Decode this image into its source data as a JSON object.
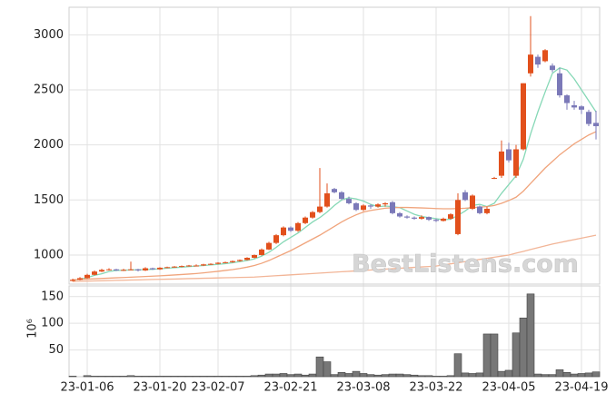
{
  "chart_data": [
    {
      "type": "candlestick",
      "watermark": "BestListens.com",
      "up_color": "#e2501c",
      "down_color": "#7b79b8",
      "ylim": [
        736,
        3250
      ],
      "yticks": [
        1000,
        1500,
        2000,
        2500,
        3000
      ],
      "grid": true,
      "open": [
        765,
        775,
        790,
        820,
        850,
        865,
        870,
        860,
        865,
        870,
        860,
        880,
        870,
        885,
        890,
        895,
        900,
        905,
        905,
        915,
        920,
        930,
        935,
        945,
        955,
        975,
        1000,
        1050,
        1110,
        1180,
        1250,
        1220,
        1290,
        1340,
        1390,
        1440,
        1600,
        1570,
        1510,
        1470,
        1410,
        1450,
        1440,
        1460,
        1480,
        1380,
        1350,
        1340,
        1330,
        1345,
        1320,
        1310,
        1330,
        1190,
        1570,
        1420,
        1440,
        1380,
        1700,
        1720,
        1960,
        1720,
        1960,
        2650,
        2800,
        2760,
        2720,
        2650,
        2450,
        2360,
        2350,
        2300,
        2200
      ],
      "high": [
        785,
        800,
        830,
        860,
        875,
        880,
        875,
        875,
        940,
        875,
        890,
        885,
        890,
        895,
        900,
        905,
        910,
        915,
        920,
        925,
        935,
        940,
        950,
        960,
        980,
        1005,
        1060,
        1120,
        1190,
        1260,
        1260,
        1300,
        1350,
        1400,
        1790,
        1650,
        1610,
        1580,
        1530,
        1480,
        1460,
        1460,
        1470,
        1480,
        1490,
        1390,
        1360,
        1350,
        1360,
        1350,
        1330,
        1340,
        1380,
        1560,
        1590,
        1550,
        1450,
        1440,
        1710,
        2040,
        2020,
        2000,
        2560,
        3170,
        2820,
        2870,
        2740,
        2700,
        2460,
        2400,
        2360,
        2320,
        2310
      ],
      "low": [
        760,
        770,
        785,
        815,
        845,
        860,
        855,
        855,
        860,
        850,
        855,
        865,
        865,
        880,
        885,
        890,
        895,
        900,
        900,
        910,
        915,
        925,
        930,
        940,
        950,
        970,
        995,
        1045,
        1100,
        1170,
        1210,
        1210,
        1280,
        1330,
        1380,
        1430,
        1560,
        1500,
        1460,
        1400,
        1400,
        1420,
        1430,
        1440,
        1370,
        1340,
        1330,
        1320,
        1320,
        1310,
        1300,
        1305,
        1320,
        1180,
        1490,
        1410,
        1370,
        1370,
        1690,
        1700,
        1840,
        1700,
        1950,
        2620,
        2700,
        2750,
        2660,
        2430,
        2320,
        2320,
        2280,
        2170,
        2050
      ],
      "close": [
        775,
        790,
        820,
        850,
        865,
        870,
        860,
        865,
        870,
        860,
        880,
        870,
        885,
        890,
        895,
        900,
        905,
        905,
        915,
        920,
        930,
        935,
        945,
        955,
        975,
        1000,
        1050,
        1110,
        1180,
        1250,
        1220,
        1290,
        1340,
        1390,
        1440,
        1560,
        1570,
        1510,
        1470,
        1410,
        1450,
        1440,
        1460,
        1470,
        1380,
        1350,
        1340,
        1330,
        1345,
        1320,
        1310,
        1330,
        1370,
        1500,
        1500,
        1540,
        1380,
        1420,
        1700,
        1940,
        1860,
        1960,
        2560,
        2820,
        2730,
        2860,
        2680,
        2450,
        2380,
        2340,
        2320,
        2190,
        2170
      ],
      "lines": [
        {
          "color": "#86d8b6",
          "values": [
            770,
            780,
            795,
            815,
            830,
            850,
            860,
            862,
            865,
            865,
            868,
            870,
            875,
            880,
            885,
            890,
            895,
            900,
            905,
            910,
            915,
            922,
            930,
            940,
            950,
            965,
            990,
            1025,
            1070,
            1120,
            1160,
            1200,
            1250,
            1300,
            1340,
            1390,
            1450,
            1500,
            1520,
            1510,
            1490,
            1460,
            1440,
            1445,
            1440,
            1430,
            1400,
            1370,
            1350,
            1340,
            1330,
            1320,
            1325,
            1360,
            1400,
            1450,
            1460,
            1440,
            1470,
            1560,
            1640,
            1720,
            1870,
            2100,
            2300,
            2480,
            2650,
            2700,
            2680,
            2600,
            2500,
            2400,
            2300
          ]
        },
        {
          "color": "#f0a47c",
          "values": [
            775,
            778,
            781,
            784,
            787,
            790,
            793,
            796,
            799,
            802,
            805,
            808,
            811,
            815,
            819,
            823,
            827,
            832,
            838,
            845,
            852,
            860,
            868,
            878,
            890,
            905,
            925,
            950,
            980,
            1010,
            1040,
            1075,
            1110,
            1145,
            1180,
            1220,
            1260,
            1300,
            1335,
            1365,
            1390,
            1405,
            1415,
            1425,
            1430,
            1432,
            1432,
            1430,
            1428,
            1425,
            1422,
            1420,
            1420,
            1422,
            1425,
            1430,
            1435,
            1440,
            1450,
            1470,
            1495,
            1525,
            1580,
            1650,
            1720,
            1790,
            1850,
            1910,
            1960,
            2010,
            2050,
            2090,
            2120
          ]
        },
        {
          "color": "#f2b597",
          "values": [
            760,
            762,
            763,
            765,
            766,
            768,
            770,
            771,
            773,
            774,
            776,
            778,
            779,
            781,
            782,
            784,
            786,
            787,
            789,
            790,
            792,
            794,
            795,
            797,
            798,
            800,
            804,
            808,
            812,
            816,
            820,
            824,
            828,
            832,
            836,
            840,
            844,
            848,
            852,
            856,
            860,
            864,
            868,
            872,
            876,
            880,
            884,
            888,
            892,
            896,
            900,
            910,
            920,
            930,
            940,
            950,
            960,
            970,
            980,
            990,
            1000,
            1017,
            1033,
            1050,
            1067,
            1083,
            1100,
            1113,
            1127,
            1140,
            1153,
            1167,
            1180
          ]
        }
      ]
    },
    {
      "type": "bar",
      "ylabel": "10⁶",
      "color": "#777777",
      "ylim": [
        0,
        170
      ],
      "yticks": [
        50,
        100,
        150
      ],
      "grid": true,
      "categories": [
        null,
        null,
        "23-01-06",
        null,
        null,
        null,
        null,
        null,
        null,
        null,
        null,
        null,
        "23-01-20",
        null,
        null,
        null,
        null,
        null,
        null,
        null,
        "23-02-07",
        null,
        null,
        null,
        null,
        null,
        null,
        null,
        null,
        null,
        "23-02-21",
        null,
        null,
        null,
        null,
        null,
        null,
        null,
        null,
        null,
        "23-03-08",
        null,
        null,
        null,
        null,
        null,
        null,
        null,
        null,
        null,
        "23-03-22",
        null,
        null,
        null,
        null,
        null,
        null,
        null,
        null,
        null,
        "23-04-05",
        null,
        null,
        null,
        null,
        null,
        null,
        null,
        null,
        null,
        "23-04-19",
        null,
        null
      ],
      "values": [
        1,
        0,
        2,
        1,
        1,
        1,
        1,
        1,
        2,
        1,
        1,
        1,
        1,
        1,
        1,
        1,
        1,
        1,
        1,
        1,
        1,
        1,
        1,
        1,
        1,
        2,
        3,
        5,
        5,
        6,
        4,
        5,
        3,
        5,
        37,
        28,
        4,
        8,
        6,
        10,
        6,
        4,
        3,
        4,
        5,
        5,
        4,
        3,
        2,
        2,
        1,
        1,
        2,
        43,
        7,
        6,
        7,
        80,
        80,
        10,
        12,
        82,
        110,
        155,
        5,
        4,
        4,
        13,
        8,
        5,
        6,
        7,
        9
      ]
    }
  ]
}
